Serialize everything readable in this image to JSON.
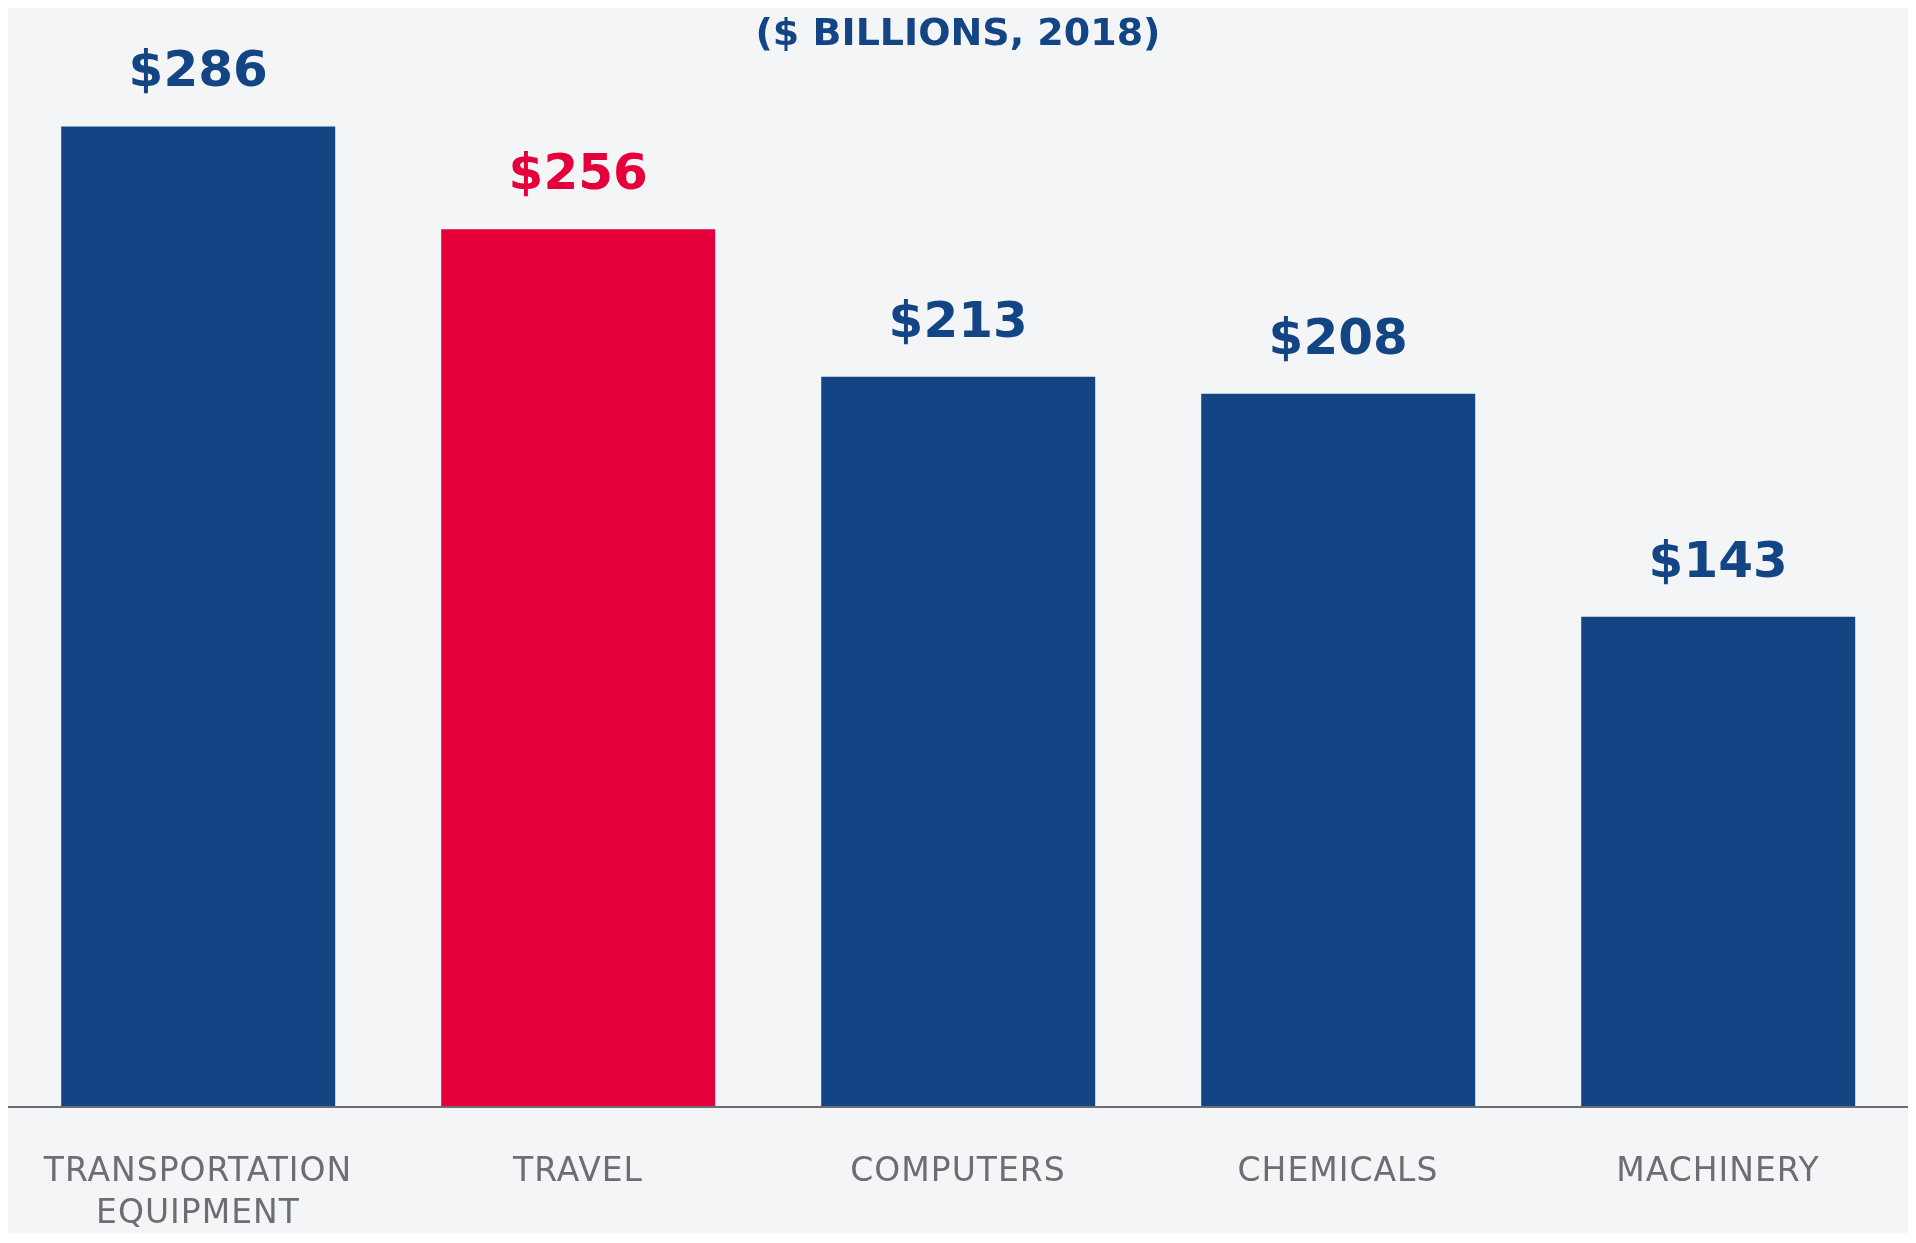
{
  "chart_data": {
    "type": "bar",
    "title": "($ BILLIONS, 2018)",
    "categories": [
      "TRANSPORTATION EQUIPMENT",
      "TRAVEL",
      "COMPUTERS",
      "CHEMICALS",
      "MACHINERY"
    ],
    "values": [
      286,
      256,
      213,
      208,
      143
    ],
    "value_labels": [
      "$286",
      "$256",
      "$213",
      "$208",
      "$143"
    ],
    "colors": [
      "#134584",
      "#e4003b",
      "#134584",
      "#134584",
      "#134584"
    ],
    "grid": false,
    "legend": false
  }
}
